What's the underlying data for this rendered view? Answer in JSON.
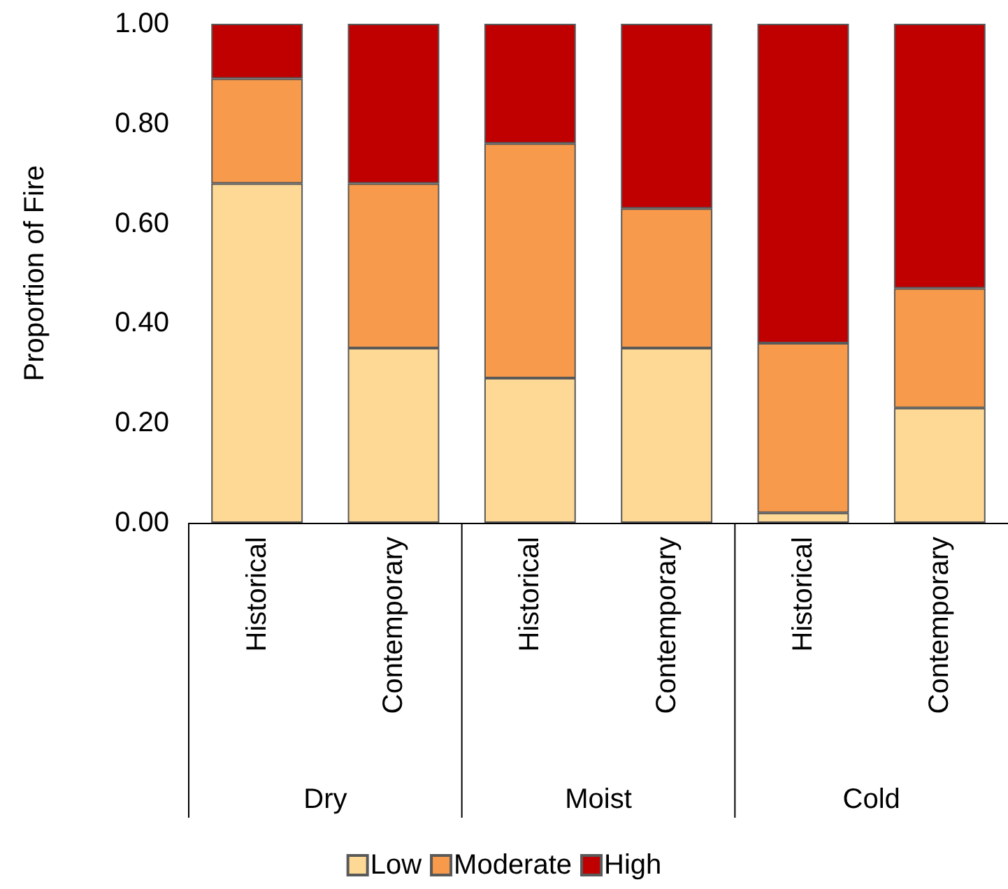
{
  "chart_data": {
    "type": "bar",
    "stacked": true,
    "ylabel": "Proportion of Fire",
    "categories": [
      "Historical",
      "Contemporary",
      "Historical",
      "Contemporary",
      "Historical",
      "Contemporary"
    ],
    "annotations": [
      "Dry",
      "Moist",
      "Cold"
    ],
    "series": [
      {
        "name": "Low",
        "color": "#fdd995",
        "values": [
          0.68,
          0.35,
          0.29,
          0.35,
          0.02,
          0.23
        ]
      },
      {
        "name": "Moderate",
        "color": "#f79a4b",
        "values": [
          0.21,
          0.33,
          0.47,
          0.28,
          0.34,
          0.24
        ]
      },
      {
        "name": "High",
        "color": "#c00000",
        "values": [
          0.11,
          0.32,
          0.24,
          0.37,
          0.64,
          0.53
        ]
      }
    ],
    "ylim": [
      0,
      1
    ],
    "yticks": [
      {
        "value": 0,
        "label": "0.00"
      },
      {
        "value": 0.2,
        "label": "0.20"
      },
      {
        "value": 0.4,
        "label": "0.40"
      },
      {
        "value": 0.6,
        "label": "0.60"
      },
      {
        "value": 0.8,
        "label": "0.80"
      },
      {
        "value": 1,
        "label": "1.00"
      }
    ],
    "grid": false,
    "legend": "bottom"
  }
}
